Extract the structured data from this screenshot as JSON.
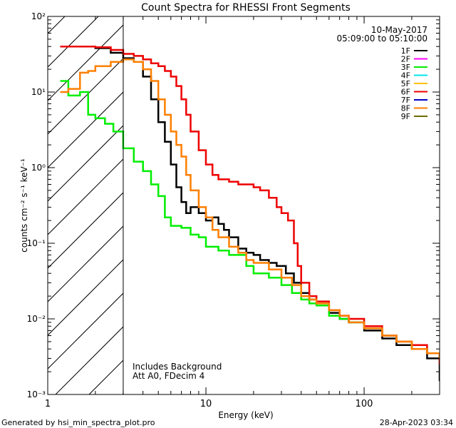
{
  "chart_data": {
    "type": "line",
    "title": "Count Spectra for RHESSI Front Segments",
    "xlabel": "Energy (keV)",
    "ylabel": "counts cm⁻² s⁻¹ keV⁻¹",
    "xscale": "log",
    "yscale": "log",
    "xlim": [
      1,
      300
    ],
    "ylim": [
      0.001,
      100
    ],
    "x_ticks": [
      "1",
      "10",
      "100"
    ],
    "y_ticks": [
      "10²",
      "10¹",
      "10⁰",
      "10⁻¹",
      "10⁻²",
      "10⁻³"
    ],
    "date": "10-May-2017",
    "time_range": "05:09:00 to 05:10:00",
    "shaded_region_below_kev": 3,
    "annotations": [
      "Includes Background",
      "Att A0, FDecim 4"
    ],
    "footer_left": "Generated by hsi_min_spectra_plot.pro",
    "footer_right": "28-Apr-2023 03:34",
    "legend_position": "top-right",
    "legend": [
      {
        "name": "1F",
        "color": "#000000"
      },
      {
        "name": "2F",
        "color": "#ff00ff"
      },
      {
        "name": "3F",
        "color": "#00ee00"
      },
      {
        "name": "4F",
        "color": "#00e5ee"
      },
      {
        "name": "5F",
        "color": "#ffc000"
      },
      {
        "name": "6F",
        "color": "#ee0000"
      },
      {
        "name": "7F",
        "color": "#0000cc"
      },
      {
        "name": "8F",
        "color": "#ff7f00"
      },
      {
        "name": "9F",
        "color": "#6b6b00"
      }
    ],
    "series": [
      {
        "name": "1F",
        "color": "#000000",
        "points": [
          [
            1.2,
            40
          ],
          [
            1.6,
            40
          ],
          [
            2,
            38
          ],
          [
            2.5,
            33
          ],
          [
            3,
            28
          ],
          [
            3.5,
            25
          ],
          [
            4,
            16
          ],
          [
            4.5,
            8
          ],
          [
            5,
            4
          ],
          [
            5.5,
            2.2
          ],
          [
            6,
            1.1
          ],
          [
            6.5,
            0.55
          ],
          [
            7,
            0.35
          ],
          [
            7.5,
            0.25
          ],
          [
            8,
            0.3
          ],
          [
            9,
            0.25
          ],
          [
            10,
            0.2
          ],
          [
            11,
            0.22
          ],
          [
            12,
            0.18
          ],
          [
            13,
            0.15
          ],
          [
            14,
            0.12
          ],
          [
            16,
            0.085
          ],
          [
            18,
            0.075
          ],
          [
            20,
            0.07
          ],
          [
            22,
            0.06
          ],
          [
            25,
            0.055
          ],
          [
            28,
            0.05
          ],
          [
            32,
            0.04
          ],
          [
            36,
            0.03
          ],
          [
            40,
            0.022
          ],
          [
            45,
            0.018
          ],
          [
            50,
            0.015
          ],
          [
            60,
            0.012
          ],
          [
            70,
            0.01
          ],
          [
            80,
            0.009
          ],
          [
            100,
            0.007
          ],
          [
            130,
            0.0055
          ],
          [
            160,
            0.0045
          ],
          [
            200,
            0.004
          ],
          [
            250,
            0.003
          ],
          [
            300,
            0.0015
          ]
        ]
      },
      {
        "name": "3F",
        "color": "#00ee00",
        "points": [
          [
            1.2,
            14
          ],
          [
            1.35,
            9
          ],
          [
            1.6,
            10
          ],
          [
            1.8,
            5
          ],
          [
            2,
            4.5
          ],
          [
            2.3,
            3.8
          ],
          [
            2.6,
            3
          ],
          [
            3,
            1.8
          ],
          [
            3.5,
            1.2
          ],
          [
            4,
            0.9
          ],
          [
            4.5,
            0.6
          ],
          [
            5,
            0.42
          ],
          [
            5.5,
            0.22
          ],
          [
            6,
            0.17
          ],
          [
            7,
            0.16
          ],
          [
            8,
            0.13
          ],
          [
            9,
            0.12
          ],
          [
            10,
            0.09
          ],
          [
            12,
            0.08
          ],
          [
            14,
            0.07
          ],
          [
            16,
            0.07
          ],
          [
            18,
            0.05
          ],
          [
            20,
            0.04
          ],
          [
            25,
            0.035
          ],
          [
            30,
            0.028
          ],
          [
            35,
            0.022
          ],
          [
            40,
            0.018
          ],
          [
            45,
            0.016
          ],
          [
            50,
            0.015
          ],
          [
            60,
            0.011
          ],
          [
            70,
            0.01
          ],
          [
            80,
            0.009
          ],
          [
            100,
            0.0075
          ],
          [
            130,
            0.006
          ],
          [
            160,
            0.005
          ],
          [
            200,
            0.004
          ],
          [
            250,
            0.0035
          ],
          [
            300,
            0.003
          ]
        ]
      },
      {
        "name": "6F",
        "color": "#ee0000",
        "points": [
          [
            1.2,
            40
          ],
          [
            1.6,
            40
          ],
          [
            2,
            39
          ],
          [
            2.5,
            36
          ],
          [
            3,
            32
          ],
          [
            3.5,
            30
          ],
          [
            4,
            27
          ],
          [
            4.5,
            24
          ],
          [
            5,
            22
          ],
          [
            5.5,
            19
          ],
          [
            6,
            16
          ],
          [
            6.5,
            12
          ],
          [
            7,
            8
          ],
          [
            7.5,
            5
          ],
          [
            8,
            3
          ],
          [
            9,
            1.7
          ],
          [
            10,
            1.1
          ],
          [
            11,
            0.8
          ],
          [
            12,
            0.7
          ],
          [
            14,
            0.65
          ],
          [
            16,
            0.6
          ],
          [
            18,
            0.6
          ],
          [
            20,
            0.55
          ],
          [
            22,
            0.5
          ],
          [
            25,
            0.4
          ],
          [
            28,
            0.3
          ],
          [
            30,
            0.25
          ],
          [
            33,
            0.2
          ],
          [
            36,
            0.1
          ],
          [
            38,
            0.05
          ],
          [
            40,
            0.03
          ],
          [
            45,
            0.02
          ],
          [
            50,
            0.017
          ],
          [
            60,
            0.013
          ],
          [
            70,
            0.011
          ],
          [
            80,
            0.01
          ],
          [
            100,
            0.008
          ],
          [
            130,
            0.006
          ],
          [
            160,
            0.005
          ],
          [
            200,
            0.0045
          ],
          [
            250,
            0.0035
          ],
          [
            300,
            0.0025
          ]
        ]
      },
      {
        "name": "8F",
        "color": "#ff7f00",
        "points": [
          [
            1.2,
            10
          ],
          [
            1.35,
            11
          ],
          [
            1.6,
            18
          ],
          [
            1.8,
            19
          ],
          [
            2,
            22
          ],
          [
            2.5,
            25
          ],
          [
            3,
            27
          ],
          [
            3.5,
            25
          ],
          [
            4,
            20
          ],
          [
            4.5,
            14
          ],
          [
            5,
            8
          ],
          [
            5.5,
            5
          ],
          [
            6,
            3
          ],
          [
            6.5,
            2
          ],
          [
            7,
            1.4
          ],
          [
            7.5,
            0.8
          ],
          [
            8,
            0.5
          ],
          [
            9,
            0.3
          ],
          [
            10,
            0.22
          ],
          [
            11,
            0.15
          ],
          [
            12,
            0.12
          ],
          [
            14,
            0.09
          ],
          [
            16,
            0.075
          ],
          [
            18,
            0.06
          ],
          [
            20,
            0.055
          ],
          [
            25,
            0.045
          ],
          [
            30,
            0.035
          ],
          [
            35,
            0.028
          ],
          [
            40,
            0.02
          ],
          [
            45,
            0.018
          ],
          [
            50,
            0.016
          ],
          [
            60,
            0.013
          ],
          [
            70,
            0.011
          ],
          [
            80,
            0.009
          ],
          [
            100,
            0.0075
          ],
          [
            130,
            0.006
          ],
          [
            160,
            0.005
          ],
          [
            200,
            0.004
          ],
          [
            250,
            0.0035
          ],
          [
            300,
            0.003
          ]
        ]
      }
    ]
  }
}
